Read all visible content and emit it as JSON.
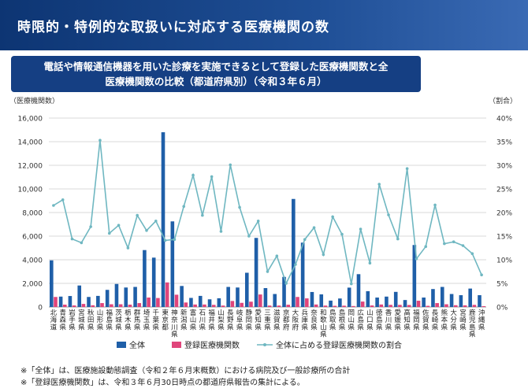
{
  "header": {
    "title": "時限的・特例的な取扱いに対応する医療機関の数"
  },
  "subtitle": {
    "line1": "電話や情報通信機器を用いた診療を実施できるとして登録した医療機関数と全",
    "line2": "医療機関数の比較（都道府県別）（令和３年６月）"
  },
  "chart_data": {
    "type": "bar",
    "left_axis_label": "（医療機関数）",
    "right_axis_label": "（割合）",
    "y_ticks": [
      "0",
      "2,000",
      "4,000",
      "6,000",
      "8,000",
      "10,000",
      "12,000",
      "14,000",
      "16,000"
    ],
    "ylim": [
      0,
      16000
    ],
    "y2_ticks": [
      "0%",
      "5%",
      "10%",
      "15%",
      "20%",
      "25%",
      "30%",
      "35%",
      "40%"
    ],
    "y2lim": [
      0,
      40
    ],
    "grid": true,
    "legend_position": "bottom",
    "categories": [
      "北海道",
      "青森県",
      "岩手県",
      "宮城県",
      "秋田県",
      "山形県",
      "福島県",
      "茨城県",
      "栃木県",
      "群馬県",
      "埼玉県",
      "千葉県",
      "東京都",
      "神奈川県",
      "新潟県",
      "富山県",
      "石川県",
      "福井県",
      "山梨県",
      "長野県",
      "岐阜県",
      "静岡県",
      "愛知県",
      "三重県",
      "滋賀県",
      "京都府",
      "大阪府",
      "兵庫県",
      "奈良県",
      "和歌山県",
      "鳥取県",
      "島根県",
      "岡山県",
      "広島県",
      "山口県",
      "徳島県",
      "香川県",
      "愛媛県",
      "高知県",
      "福岡県",
      "佐賀県",
      "長崎県",
      "熊本県",
      "大分県",
      "宮崎県",
      "鹿児島県",
      "沖縄県"
    ],
    "series": [
      {
        "name": "全体",
        "type": "bar",
        "color": "#1f5fa8",
        "values": [
          3950,
          880,
          930,
          1820,
          850,
          940,
          1450,
          1950,
          1650,
          1700,
          4820,
          4180,
          14800,
          7250,
          1780,
          770,
          940,
          650,
          740,
          1700,
          1650,
          2900,
          5850,
          1600,
          1100,
          2550,
          9150,
          5450,
          1270,
          1070,
          540,
          720,
          1640,
          2780,
          1340,
          800,
          880,
          1280,
          590,
          5250,
          800,
          1520,
          1700,
          1100,
          1000,
          1560,
          1000
        ]
      },
      {
        "name": "登録医療機関数",
        "type": "bar",
        "color": "#e0457b",
        "values": [
          850,
          200,
          130,
          260,
          145,
          330,
          230,
          230,
          200,
          330,
          800,
          760,
          2080,
          1040,
          380,
          210,
          210,
          180,
          120,
          510,
          350,
          450,
          1060,
          120,
          120,
          190,
          850,
          730,
          210,
          120,
          100,
          110,
          80,
          460,
          130,
          210,
          180,
          180,
          170,
          530,
          100,
          330,
          230,
          150,
          140,
          180,
          70
        ]
      },
      {
        "name": "全体に占める登録医療機関数の割合",
        "type": "line",
        "color": "#6fb7c1",
        "values": [
          21.5,
          22.7,
          14.4,
          13.6,
          17,
          35.3,
          15.6,
          17.3,
          12.5,
          19.4,
          16.2,
          18.2,
          14.1,
          14.3,
          21.3,
          27.9,
          19.4,
          27.6,
          16,
          30.1,
          21.1,
          15,
          18.2,
          7.5,
          10.8,
          5,
          9,
          14.3,
          16.8,
          11.1,
          19.1,
          15.4,
          4.9,
          16.5,
          9.3,
          26,
          19.5,
          14.4,
          29.3,
          10.2,
          12.8,
          21.6,
          13.4,
          13.8,
          13,
          11.3,
          6.8
        ]
      }
    ]
  },
  "notes": {
    "line1": "※「全体」は、医療施設動態調査（令和２年６月末概数）における病院及び一般診療所の合計",
    "line2": "※「登録医療機関数」は、令和３年６月30日時点の都道府県報告の集計による。"
  }
}
